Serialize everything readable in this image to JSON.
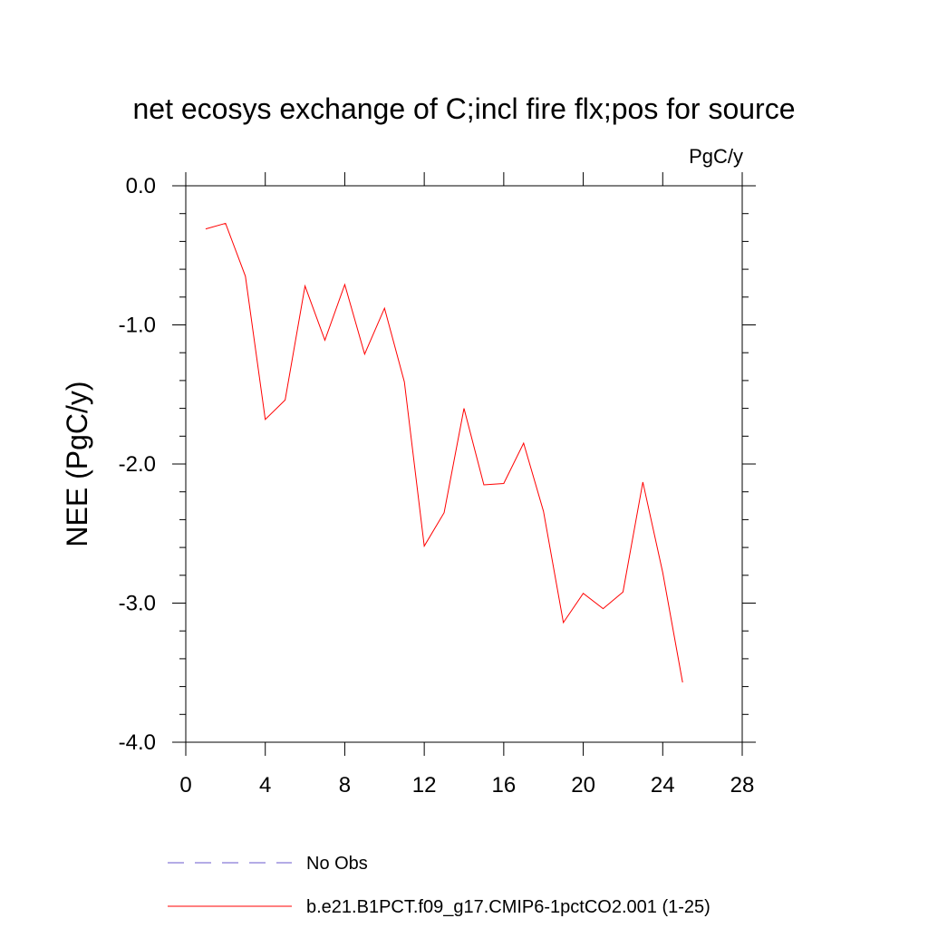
{
  "chart_data": {
    "type": "line",
    "title": "net ecosys exchange of C;incl fire flx;pos for source",
    "units_label": "PgC/y",
    "xlabel": "",
    "ylabel": "NEE  (PgC/y)",
    "xlim": [
      0,
      28
    ],
    "ylim": [
      -4.0,
      0.0
    ],
    "xticks": [
      0,
      4,
      8,
      12,
      16,
      20,
      24,
      28
    ],
    "xtick_labels": [
      "0",
      "4",
      "8",
      "12",
      "16",
      "20",
      "24",
      "28"
    ],
    "yticks": [
      0.0,
      -1.0,
      -2.0,
      -3.0,
      -4.0
    ],
    "ytick_labels": [
      "0.0",
      "-1.0",
      "-2.0",
      "-3.0",
      "-4.0"
    ],
    "grid": false,
    "legend_position": "bottom",
    "series": [
      {
        "name": "b.e21.B1PCT.f09_g17.CMIP6-1pctCO2.001 (1-25)",
        "color": "#ff0000",
        "style": "solid",
        "x": [
          1,
          2,
          3,
          4,
          5,
          6,
          7,
          8,
          9,
          10,
          11,
          12,
          13,
          14,
          15,
          16,
          17,
          18,
          19,
          20,
          21,
          22,
          23,
          24,
          25
        ],
        "y": [
          -0.31,
          -0.27,
          -0.65,
          -1.68,
          -1.54,
          -0.72,
          -1.11,
          -0.71,
          -1.21,
          -0.88,
          -1.41,
          -2.59,
          -2.35,
          -1.6,
          -2.15,
          -2.14,
          -1.85,
          -2.34,
          -3.14,
          -2.93,
          -3.04,
          -2.92,
          -2.13,
          -2.78,
          -3.57
        ]
      }
    ],
    "legend": [
      {
        "label": "No Obs",
        "color": "#6a5acd",
        "style": "dashed"
      },
      {
        "label": "b.e21.B1PCT.f09_g17.CMIP6-1pctCO2.001 (1-25)",
        "color": "#ff0000",
        "style": "solid"
      }
    ]
  }
}
